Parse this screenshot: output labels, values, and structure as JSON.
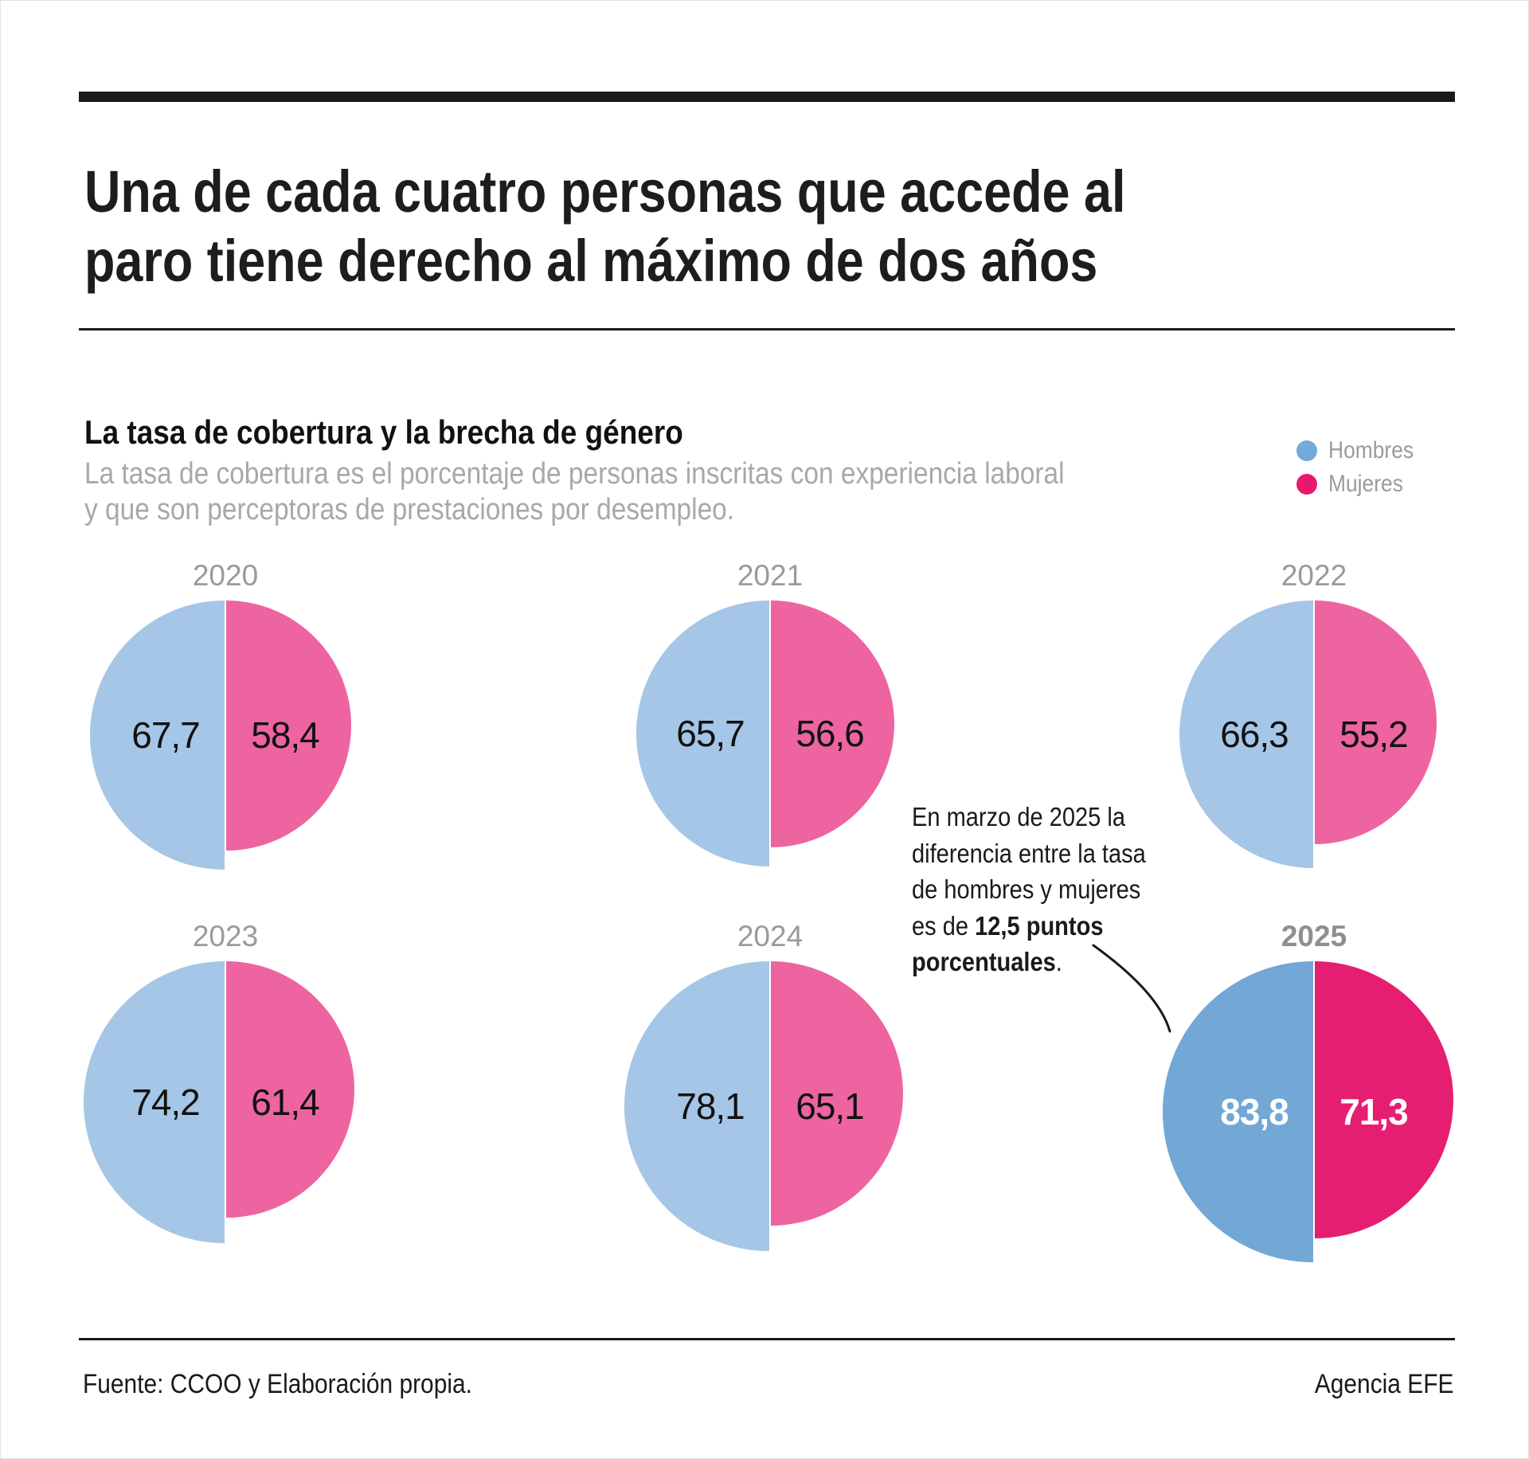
{
  "header": {
    "title_lines": [
      "Una de cada cuatro personas que accede al",
      "paro tiene derecho al máximo de dos años"
    ]
  },
  "section": {
    "subtitle": "La tasa de cobertura y la brecha de género",
    "description_lines": [
      "La tasa de cobertura es el porcentaje de personas inscritas con experiencia laboral",
      "y que son perceptoras de prestaciones por desempleo."
    ]
  },
  "legend": {
    "items": [
      {
        "label": "Hombres",
        "color": "#74a9dc"
      },
      {
        "label": "Mujeres",
        "color": "#e7196f"
      }
    ]
  },
  "chart_data": {
    "type": "pie",
    "variant": "paired semicircles per year; left=Hombres, right=Mujeres; radius proportional to sqrt(value), halves aligned at top",
    "categories": [
      "2020",
      "2021",
      "2022",
      "2023",
      "2024",
      "2025"
    ],
    "series": [
      {
        "name": "Hombres",
        "values": [
          67.7,
          65.7,
          66.3,
          74.2,
          78.1,
          83.8
        ]
      },
      {
        "name": "Mujeres",
        "values": [
          58.4,
          56.6,
          55.2,
          61.4,
          65.1,
          71.3
        ]
      }
    ],
    "value_labels": {
      "Hombres": [
        "67,7",
        "65,7",
        "66,3",
        "74,2",
        "78,1",
        "83,8"
      ],
      "Mujeres": [
        "58,4",
        "56,6",
        "55,2",
        "61,4",
        "65,1",
        "71,3"
      ]
    },
    "emphasized_category": "2025",
    "legend_position": "top-right",
    "palette": {
      "men_light": "#a5c6e6",
      "women_light": "#ed64a1",
      "men_strong": "#72a7d6",
      "women_strong": "#e61e72",
      "value_label_dark": "#111111",
      "value_label_light": "#ffffff",
      "year_gray": "#9a9a9a"
    }
  },
  "annotation": {
    "lines": [
      [
        {
          "text": "En marzo de 2025 la"
        }
      ],
      [
        {
          "text": "diferencia entre la tasa"
        }
      ],
      [
        {
          "text": "de hombres y mujeres"
        }
      ],
      [
        {
          "text": "es de "
        },
        {
          "text": "12,5 puntos",
          "bold": true
        }
      ],
      [
        {
          "text": "porcentuales",
          "bold": true
        },
        {
          "text": "."
        }
      ]
    ]
  },
  "footer": {
    "source": "Fuente: CCOO y Elaboración propia.",
    "credit": "Agencia EFE"
  }
}
